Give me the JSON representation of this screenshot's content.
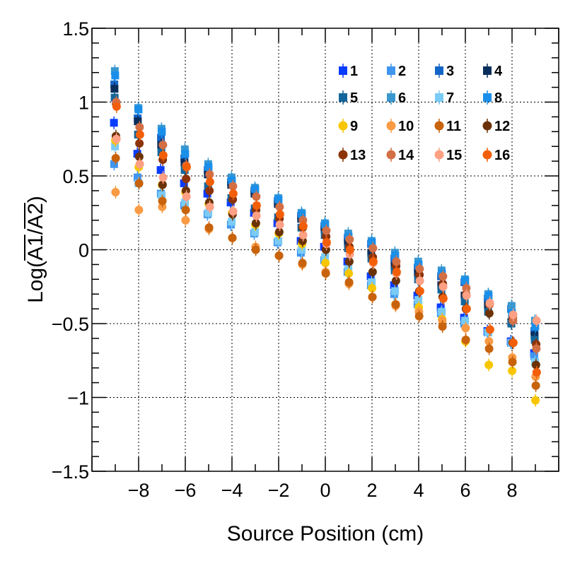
{
  "chart_data": {
    "type": "scatter",
    "title": "",
    "xlabel": "Source Position (cm)",
    "ylabel": "Log(A1/A2)",
    "ylabel_parts": {
      "prefix": "Log(",
      "a1": "A1",
      "slash": "/",
      "a2": "A2",
      "suffix": ")"
    },
    "xlim": [
      -10,
      10
    ],
    "ylim": [
      -1.5,
      1.5
    ],
    "x_ticks": [
      -8,
      -6,
      -4,
      -2,
      0,
      2,
      4,
      6,
      8
    ],
    "x_tick_labels": [
      "−8",
      "−6",
      "−4",
      "−2",
      "0",
      "2",
      "4",
      "6",
      "8"
    ],
    "y_ticks": [
      -1.5,
      -1,
      -0.5,
      0,
      0.5,
      1,
      1.5
    ],
    "y_tick_labels": [
      "−1.5",
      "−1",
      "−0.5",
      "0",
      "0.5",
      "1",
      "1.5"
    ],
    "grid": true,
    "legend_position": "top-right",
    "x": [
      -9,
      -8,
      -7,
      -6,
      -5,
      -4,
      -3,
      -2,
      -1,
      0,
      1,
      2,
      3,
      4,
      5,
      6,
      7,
      8,
      9
    ],
    "series": [
      {
        "name": "1",
        "marker": "square",
        "color": "#0a3cff",
        "values": [
          0.86,
          0.65,
          0.54,
          0.45,
          0.38,
          0.32,
          0.25,
          0.18,
          0.06,
          0.02,
          -0.08,
          -0.18,
          -0.24,
          -0.31,
          -0.39,
          -0.46,
          -0.55,
          -0.62,
          -0.7
        ]
      },
      {
        "name": "2",
        "marker": "square",
        "color": "#3f95ef",
        "values": [
          0.58,
          0.49,
          0.38,
          0.3,
          0.24,
          0.17,
          0.11,
          0.05,
          -0.02,
          -0.07,
          -0.15,
          -0.24,
          -0.3,
          -0.37,
          -0.43,
          -0.5,
          -0.56,
          -0.63,
          -0.72
        ]
      },
      {
        "name": "3",
        "marker": "square",
        "color": "#1565c8",
        "values": [
          1.12,
          0.89,
          0.76,
          0.62,
          0.54,
          0.46,
          0.4,
          0.33,
          0.23,
          0.16,
          0.08,
          0.04,
          -0.06,
          -0.12,
          -0.18,
          -0.22,
          -0.33,
          -0.4,
          -0.55
        ]
      },
      {
        "name": "4",
        "marker": "square",
        "color": "#0a2e5c",
        "values": [
          1.09,
          0.87,
          0.71,
          0.59,
          0.51,
          0.44,
          0.38,
          0.31,
          0.21,
          0.14,
          0.05,
          -0.02,
          -0.11,
          -0.16,
          -0.24,
          -0.31,
          -0.38,
          -0.49,
          -0.58
        ]
      },
      {
        "name": "5",
        "marker": "square",
        "color": "#13669b",
        "values": [
          1.03,
          0.78,
          0.66,
          0.54,
          0.43,
          0.35,
          0.28,
          0.22,
          0.15,
          0.1,
          0.01,
          -0.06,
          -0.14,
          -0.2,
          -0.27,
          -0.35,
          -0.42,
          -0.5,
          -0.61
        ]
      },
      {
        "name": "6",
        "marker": "square",
        "color": "#3a98cf",
        "values": [
          1.21,
          0.96,
          0.82,
          0.68,
          0.58,
          0.49,
          0.42,
          0.35,
          0.25,
          0.18,
          0.11,
          0.06,
          -0.02,
          -0.08,
          -0.14,
          -0.2,
          -0.3,
          -0.38,
          -0.48
        ]
      },
      {
        "name": "7",
        "marker": "square",
        "color": "#7acbf5",
        "values": [
          0.7,
          0.45,
          0.37,
          0.32,
          0.25,
          0.19,
          0.12,
          0.06,
          0.0,
          -0.05,
          -0.13,
          -0.22,
          -0.28,
          -0.34,
          -0.42,
          -0.48,
          -0.56,
          -0.63,
          -0.76
        ]
      },
      {
        "name": "8",
        "marker": "square",
        "color": "#1a8fea",
        "values": [
          1.18,
          0.95,
          0.8,
          0.65,
          0.56,
          0.47,
          0.41,
          0.34,
          0.24,
          0.17,
          0.09,
          0.05,
          -0.04,
          -0.1,
          -0.16,
          -0.21,
          -0.31,
          -0.43,
          -0.52
        ]
      },
      {
        "name": "9",
        "marker": "circle",
        "color": "#f7c600",
        "values": [
          0.74,
          0.56,
          0.44,
          0.39,
          0.31,
          0.25,
          0.17,
          0.11,
          0.04,
          -0.09,
          -0.16,
          -0.26,
          -0.37,
          -0.39,
          -0.47,
          -0.62,
          -0.78,
          -0.82,
          -1.02
        ]
      },
      {
        "name": "10",
        "marker": "circle",
        "color": "#f99a44",
        "values": [
          0.39,
          0.27,
          0.29,
          0.2,
          0.14,
          0.08,
          0.02,
          -0.04,
          -0.1,
          -0.15,
          -0.23,
          -0.32,
          -0.38,
          -0.42,
          -0.48,
          -0.53,
          -0.62,
          -0.73,
          -0.86
        ]
      },
      {
        "name": "11",
        "marker": "circle",
        "color": "#c8630c",
        "values": [
          0.62,
          0.45,
          0.33,
          0.27,
          0.15,
          0.08,
          0.0,
          -0.04,
          -0.09,
          -0.16,
          -0.22,
          -0.32,
          -0.37,
          -0.45,
          -0.52,
          -0.61,
          -0.67,
          -0.76,
          -0.92
        ]
      },
      {
        "name": "12",
        "marker": "circle",
        "color": "#6b3208",
        "values": [
          0.77,
          0.63,
          0.44,
          0.4,
          0.32,
          0.24,
          0.18,
          0.12,
          0.06,
          0.0,
          -0.08,
          -0.15,
          -0.21,
          -0.28,
          -0.32,
          -0.4,
          -0.43,
          -0.63,
          -0.78
        ]
      },
      {
        "name": "13",
        "marker": "circle",
        "color": "#8c3309",
        "values": [
          0.99,
          0.72,
          0.61,
          0.48,
          0.4,
          0.34,
          0.27,
          0.21,
          0.15,
          0.09,
          0.02,
          -0.05,
          -0.11,
          -0.17,
          -0.23,
          -0.3,
          -0.37,
          -0.46,
          -0.64
        ]
      },
      {
        "name": "14",
        "marker": "circle",
        "color": "#d36f45",
        "values": [
          1.0,
          0.83,
          0.71,
          0.57,
          0.51,
          0.43,
          0.36,
          0.29,
          0.2,
          0.13,
          0.07,
          0.01,
          -0.08,
          -0.13,
          -0.18,
          -0.26,
          -0.37,
          -0.48,
          -0.67
        ]
      },
      {
        "name": "15",
        "marker": "circle",
        "color": "#fda084",
        "values": [
          0.75,
          0.58,
          0.49,
          0.36,
          0.29,
          0.26,
          0.23,
          0.17,
          0.1,
          0.04,
          -0.03,
          -0.09,
          -0.16,
          -0.21,
          -0.25,
          -0.31,
          -0.36,
          -0.44,
          -0.48
        ]
      },
      {
        "name": "16",
        "marker": "circle",
        "color": "#f25f08",
        "values": [
          0.97,
          0.78,
          0.64,
          0.56,
          0.46,
          0.38,
          0.3,
          0.24,
          0.16,
          0.05,
          0.0,
          -0.08,
          -0.15,
          -0.28,
          -0.33,
          -0.4,
          -0.54,
          -0.63,
          -0.83
        ]
      }
    ]
  }
}
